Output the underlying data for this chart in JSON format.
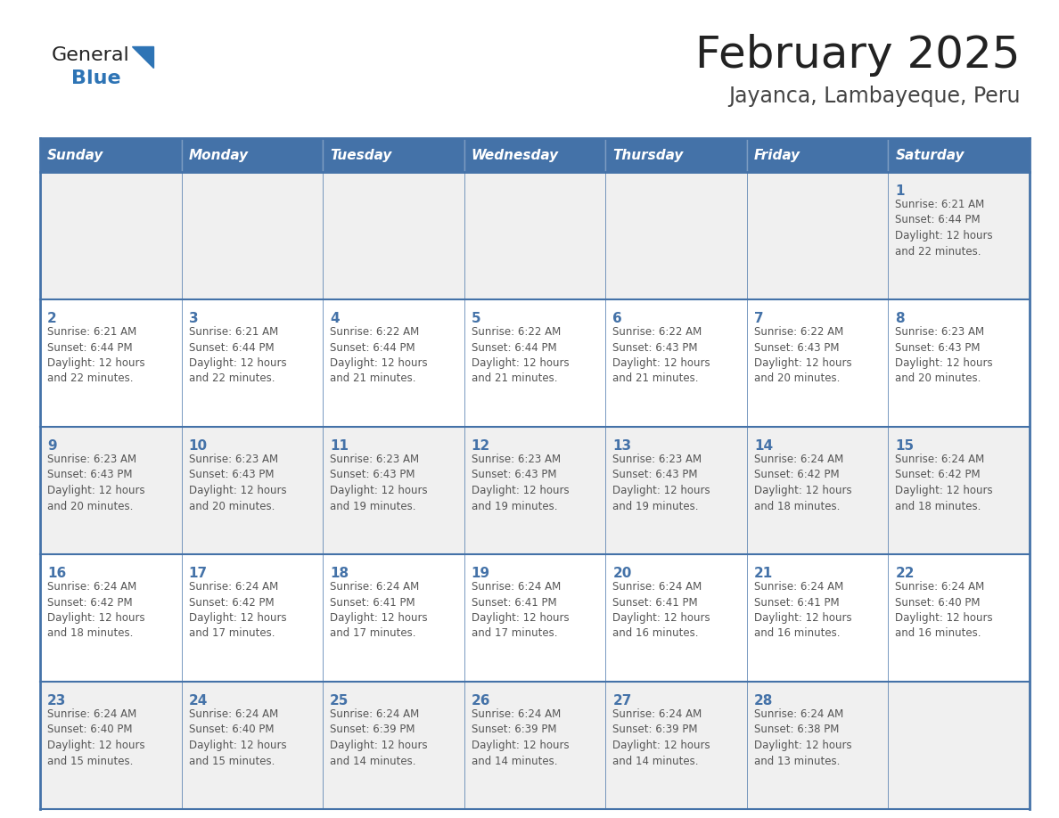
{
  "title": "February 2025",
  "subtitle": "Jayanca, Lambayeque, Peru",
  "header_bg": "#4472a8",
  "header_text_color": "#ffffff",
  "cell_bg_even": "#f0f0f0",
  "cell_bg_odd": "#ffffff",
  "cell_border_color": "#4472a8",
  "day_number_color": "#4472a8",
  "info_text_color": "#555555",
  "weekdays": [
    "Sunday",
    "Monday",
    "Tuesday",
    "Wednesday",
    "Thursday",
    "Friday",
    "Saturday"
  ],
  "title_color": "#222222",
  "subtitle_color": "#444444",
  "logo_general_color": "#222222",
  "logo_blue_color": "#2e74b5",
  "calendar": [
    [
      null,
      null,
      null,
      null,
      null,
      null,
      {
        "day": "1",
        "sunrise": "6:21 AM",
        "sunset": "6:44 PM",
        "hours": "12",
        "minutes": "22"
      }
    ],
    [
      {
        "day": "2",
        "sunrise": "6:21 AM",
        "sunset": "6:44 PM",
        "hours": "12",
        "minutes": "22"
      },
      {
        "day": "3",
        "sunrise": "6:21 AM",
        "sunset": "6:44 PM",
        "hours": "12",
        "minutes": "22"
      },
      {
        "day": "4",
        "sunrise": "6:22 AM",
        "sunset": "6:44 PM",
        "hours": "12",
        "minutes": "21"
      },
      {
        "day": "5",
        "sunrise": "6:22 AM",
        "sunset": "6:44 PM",
        "hours": "12",
        "minutes": "21"
      },
      {
        "day": "6",
        "sunrise": "6:22 AM",
        "sunset": "6:43 PM",
        "hours": "12",
        "minutes": "21"
      },
      {
        "day": "7",
        "sunrise": "6:22 AM",
        "sunset": "6:43 PM",
        "hours": "12",
        "minutes": "20"
      },
      {
        "day": "8",
        "sunrise": "6:23 AM",
        "sunset": "6:43 PM",
        "hours": "12",
        "minutes": "20"
      }
    ],
    [
      {
        "day": "9",
        "sunrise": "6:23 AM",
        "sunset": "6:43 PM",
        "hours": "12",
        "minutes": "20"
      },
      {
        "day": "10",
        "sunrise": "6:23 AM",
        "sunset": "6:43 PM",
        "hours": "12",
        "minutes": "20"
      },
      {
        "day": "11",
        "sunrise": "6:23 AM",
        "sunset": "6:43 PM",
        "hours": "12",
        "minutes": "19"
      },
      {
        "day": "12",
        "sunrise": "6:23 AM",
        "sunset": "6:43 PM",
        "hours": "12",
        "minutes": "19"
      },
      {
        "day": "13",
        "sunrise": "6:23 AM",
        "sunset": "6:43 PM",
        "hours": "12",
        "minutes": "19"
      },
      {
        "day": "14",
        "sunrise": "6:24 AM",
        "sunset": "6:42 PM",
        "hours": "12",
        "minutes": "18"
      },
      {
        "day": "15",
        "sunrise": "6:24 AM",
        "sunset": "6:42 PM",
        "hours": "12",
        "minutes": "18"
      }
    ],
    [
      {
        "day": "16",
        "sunrise": "6:24 AM",
        "sunset": "6:42 PM",
        "hours": "12",
        "minutes": "18"
      },
      {
        "day": "17",
        "sunrise": "6:24 AM",
        "sunset": "6:42 PM",
        "hours": "12",
        "minutes": "17"
      },
      {
        "day": "18",
        "sunrise": "6:24 AM",
        "sunset": "6:41 PM",
        "hours": "12",
        "minutes": "17"
      },
      {
        "day": "19",
        "sunrise": "6:24 AM",
        "sunset": "6:41 PM",
        "hours": "12",
        "minutes": "17"
      },
      {
        "day": "20",
        "sunrise": "6:24 AM",
        "sunset": "6:41 PM",
        "hours": "12",
        "minutes": "16"
      },
      {
        "day": "21",
        "sunrise": "6:24 AM",
        "sunset": "6:41 PM",
        "hours": "12",
        "minutes": "16"
      },
      {
        "day": "22",
        "sunrise": "6:24 AM",
        "sunset": "6:40 PM",
        "hours": "12",
        "minutes": "16"
      }
    ],
    [
      {
        "day": "23",
        "sunrise": "6:24 AM",
        "sunset": "6:40 PM",
        "hours": "12",
        "minutes": "15"
      },
      {
        "day": "24",
        "sunrise": "6:24 AM",
        "sunset": "6:40 PM",
        "hours": "12",
        "minutes": "15"
      },
      {
        "day": "25",
        "sunrise": "6:24 AM",
        "sunset": "6:39 PM",
        "hours": "12",
        "minutes": "14"
      },
      {
        "day": "26",
        "sunrise": "6:24 AM",
        "sunset": "6:39 PM",
        "hours": "12",
        "minutes": "14"
      },
      {
        "day": "27",
        "sunrise": "6:24 AM",
        "sunset": "6:39 PM",
        "hours": "12",
        "minutes": "14"
      },
      {
        "day": "28",
        "sunrise": "6:24 AM",
        "sunset": "6:38 PM",
        "hours": "12",
        "minutes": "13"
      },
      null
    ]
  ]
}
